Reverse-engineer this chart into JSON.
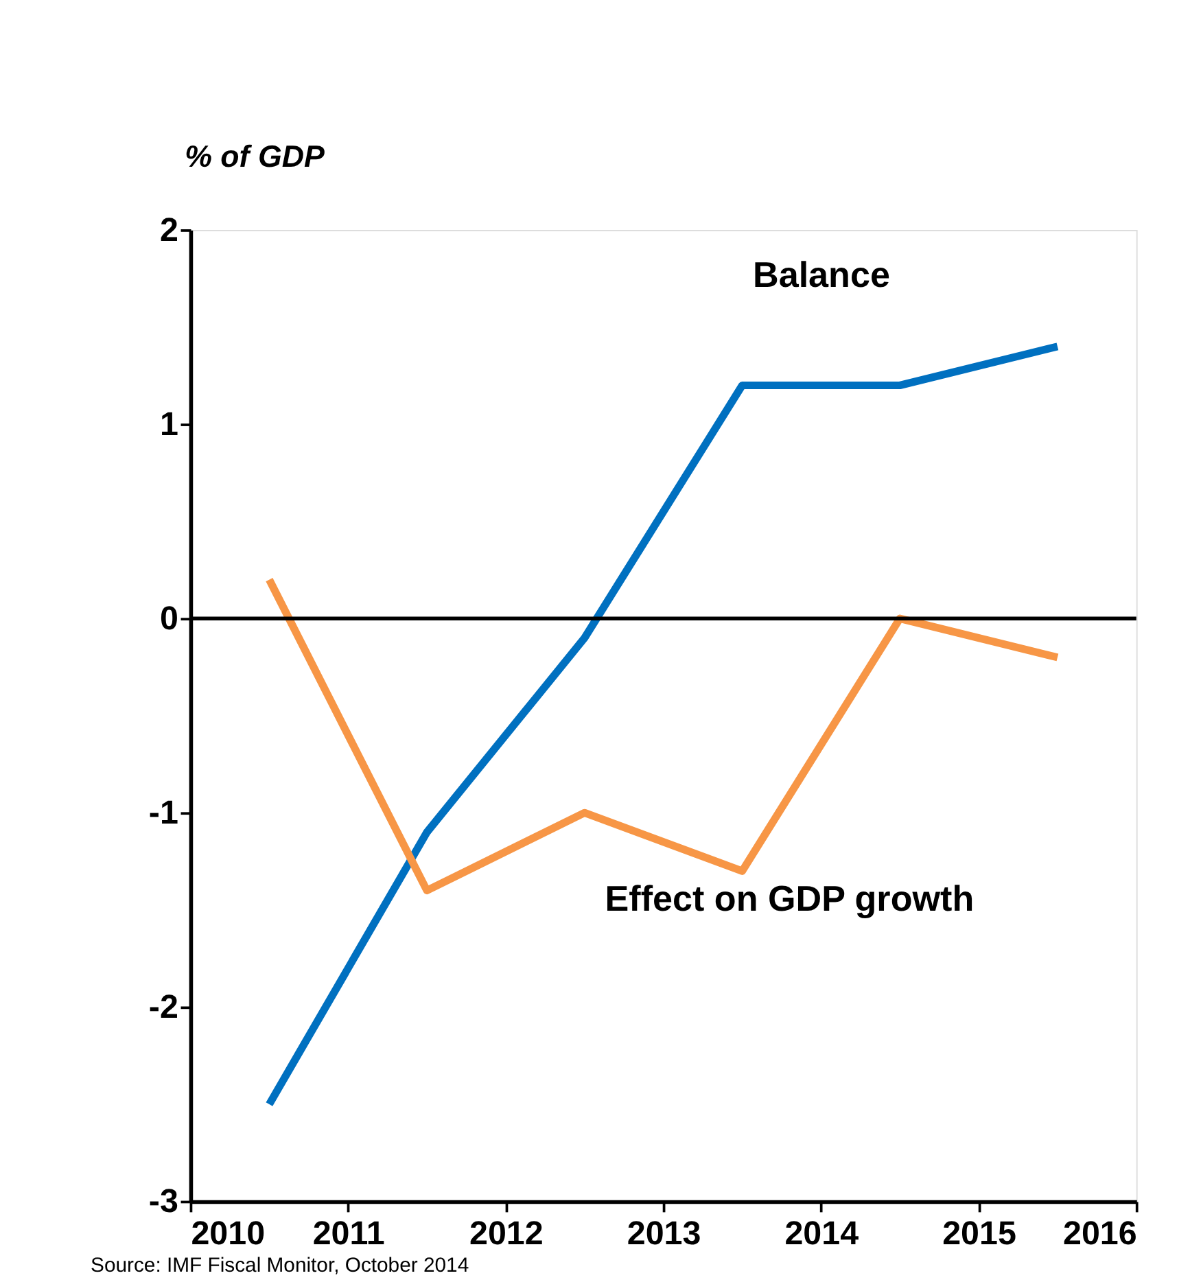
{
  "chart_data": {
    "type": "line",
    "ylabel": "% of GDP",
    "x": [
      2010.5,
      2011.5,
      2012.5,
      2013.5,
      2014.5,
      2015.5
    ],
    "series": [
      {
        "name": "Balance",
        "color": "#0070c0",
        "values": [
          -2.5,
          -1.1,
          -0.1,
          1.2,
          1.2,
          1.4
        ]
      },
      {
        "name": "Effect on GDP growth",
        "color": "#f79646",
        "values": [
          0.2,
          -1.4,
          -1.0,
          -1.3,
          0.0,
          -0.2
        ]
      }
    ],
    "xlim": [
      2010,
      2016
    ],
    "xticks": [
      2010,
      2011,
      2012,
      2013,
      2014,
      2015,
      2016
    ],
    "ylim": [
      -3,
      2
    ],
    "yticks": [
      -3,
      -2,
      -1,
      0,
      1,
      2
    ],
    "ref_lines": [
      {
        "axis": "y",
        "value": 0,
        "color": "#000000"
      }
    ],
    "grid": false,
    "marker": "none",
    "line_style": "solid",
    "annotations": [
      "Source: IMF Fiscal Monitor, October 2014"
    ]
  }
}
